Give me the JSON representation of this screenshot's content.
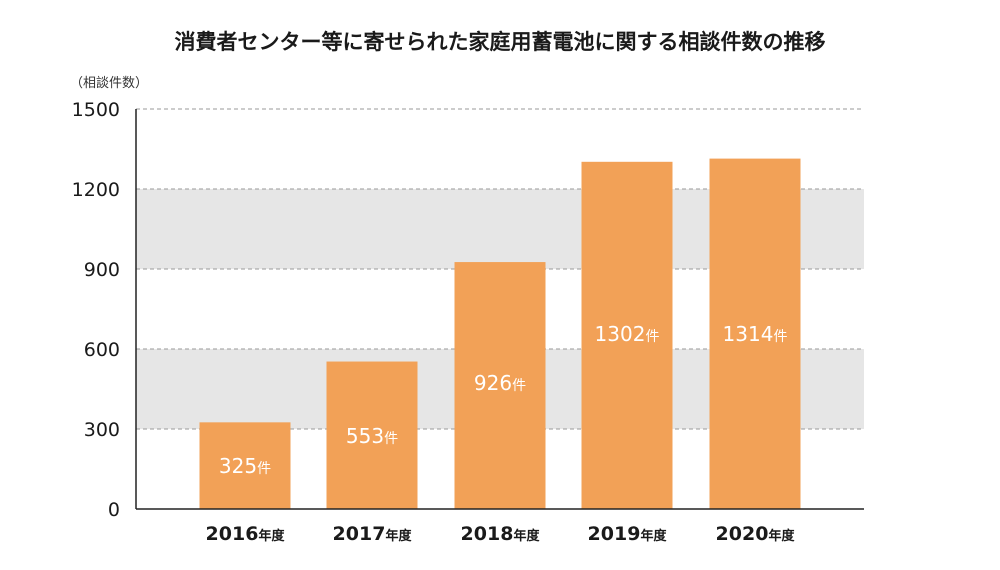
{
  "chart_data": {
    "type": "bar",
    "title": "消費者センター等に寄せられた家庭用蓄電池に関する相談件数の推移",
    "y_unit_label": "（相談件数）",
    "categories": [
      {
        "year": "2016",
        "suffix": "年度"
      },
      {
        "year": "2017",
        "suffix": "年度"
      },
      {
        "year": "2018",
        "suffix": "年度"
      },
      {
        "year": "2019",
        "suffix": "年度"
      },
      {
        "year": "2020",
        "suffix": "年度"
      }
    ],
    "values": [
      325,
      553,
      926,
      1302,
      1314
    ],
    "value_suffix": "件",
    "ylim": [
      0,
      1500
    ],
    "yticks": [
      "0",
      "300",
      "600",
      "900",
      "1200",
      "1500"
    ],
    "grid": true,
    "legend": "none",
    "colors": {
      "bar": "#F2A157",
      "band": "#E6E6E6",
      "grid": "#999999",
      "axis": "#222222",
      "text": "#1a1a1a"
    }
  }
}
